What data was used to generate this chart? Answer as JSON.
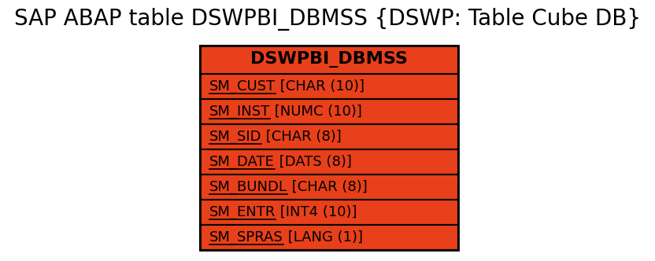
{
  "title": "SAP ABAP table DSWPBI_DBMSS {DSWP: Table Cube DB}",
  "title_fontsize": 20,
  "title_color": "#000000",
  "bg_color": "#ffffff",
  "table_name": "DSWPBI_DBMSS",
  "header_bg": "#e8401a",
  "header_text_color": "#000000",
  "header_fontsize": 16,
  "row_bg": "#e8401a",
  "row_border_color": "#000000",
  "row_text_color": "#000000",
  "row_fontsize": 13,
  "fields": [
    {
      "key": "SM_CUST",
      "type": " [CHAR (10)]"
    },
    {
      "key": "SM_INST",
      "type": " [NUMC (10)]"
    },
    {
      "key": "SM_SID",
      "type": " [CHAR (8)]"
    },
    {
      "key": "SM_DATE",
      "type": " [DATS (8)]"
    },
    {
      "key": "SM_BUNDL",
      "type": " [CHAR (8)]"
    },
    {
      "key": "SM_ENTR",
      "type": " [INT4 (10)]"
    },
    {
      "key": "SM_SPRAS",
      "type": " [LANG (1)]"
    }
  ],
  "fig_width": 8.32,
  "fig_height": 3.32,
  "dpi": 100
}
